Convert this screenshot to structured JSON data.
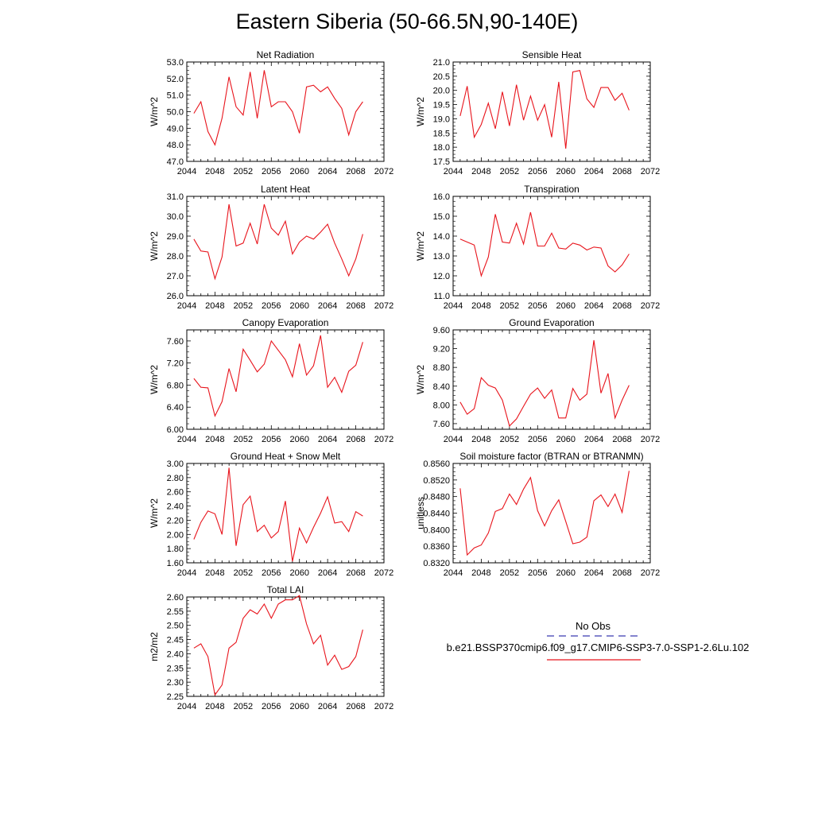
{
  "page": {
    "title": "Eastern Siberia (50-66.5N,90-140E)"
  },
  "legend": {
    "obs_label": "No Obs",
    "model_label": "b.e21.BSSP370cmip6.f09_g17.CMIP6-SSP3-7.0-SSP1-2.6Lu.102",
    "obs_color": "#3b3bb0",
    "model_color": "#e8141c"
  },
  "chart_data": [
    {
      "type": "line",
      "title": "Net Radiation",
      "ylabel": "W/m^2",
      "xlim": [
        2044,
        2072
      ],
      "xticks": [
        "2044",
        "2048",
        "2052",
        "2056",
        "2060",
        "2064",
        "2068",
        "2072"
      ],
      "ylim": [
        47.0,
        53.0
      ],
      "yticks": [
        "47.0",
        "48.0",
        "49.0",
        "50.0",
        "51.0",
        "52.0",
        "53.0"
      ],
      "x": [
        2045,
        2046,
        2047,
        2048,
        2049,
        2050,
        2051,
        2052,
        2053,
        2054,
        2055,
        2056,
        2057,
        2058,
        2059,
        2060,
        2061,
        2062,
        2063,
        2064,
        2065,
        2066,
        2067,
        2068,
        2069
      ],
      "y": [
        49.9,
        50.6,
        48.8,
        48.0,
        49.6,
        52.1,
        50.3,
        49.8,
        52.4,
        49.6,
        52.5,
        50.3,
        50.6,
        50.6,
        50.0,
        48.7,
        51.5,
        51.6,
        51.2,
        51.5,
        50.8,
        50.2,
        48.6,
        50.0,
        50.6
      ]
    },
    {
      "type": "line",
      "title": "Sensible Heat",
      "ylabel": "W/m^2",
      "xlim": [
        2044,
        2072
      ],
      "xticks": [
        "2044",
        "2048",
        "2052",
        "2056",
        "2060",
        "2064",
        "2068",
        "2072"
      ],
      "ylim": [
        17.5,
        21.0
      ],
      "yticks": [
        "17.5",
        "18.0",
        "18.5",
        "19.0",
        "19.5",
        "20.0",
        "20.5",
        "21.0"
      ],
      "x": [
        2045,
        2046,
        2047,
        2048,
        2049,
        2050,
        2051,
        2052,
        2053,
        2054,
        2055,
        2056,
        2057,
        2058,
        2059,
        2060,
        2061,
        2062,
        2063,
        2064,
        2065,
        2066,
        2067,
        2068,
        2069
      ],
      "y": [
        19.1,
        20.15,
        18.35,
        18.8,
        19.55,
        18.65,
        19.95,
        18.75,
        20.2,
        18.95,
        19.8,
        18.95,
        19.5,
        18.35,
        20.3,
        17.95,
        20.65,
        20.7,
        19.7,
        19.4,
        20.1,
        20.1,
        19.65,
        19.9,
        19.3
      ]
    },
    {
      "type": "line",
      "title": "Latent Heat",
      "ylabel": "W/m^2",
      "xlim": [
        2044,
        2072
      ],
      "xticks": [
        "2044",
        "2048",
        "2052",
        "2056",
        "2060",
        "2064",
        "2068",
        "2072"
      ],
      "ylim": [
        26.0,
        31.0
      ],
      "yticks": [
        "26.0",
        "27.0",
        "28.0",
        "29.0",
        "30.0",
        "31.0"
      ],
      "x": [
        2045,
        2046,
        2047,
        2048,
        2049,
        2050,
        2051,
        2052,
        2053,
        2054,
        2055,
        2056,
        2057,
        2058,
        2059,
        2060,
        2061,
        2062,
        2063,
        2064,
        2065,
        2066,
        2067,
        2068,
        2069
      ],
      "y": [
        28.85,
        28.25,
        28.2,
        26.85,
        27.95,
        30.6,
        28.5,
        28.65,
        29.65,
        28.6,
        30.6,
        29.4,
        29.05,
        29.75,
        28.1,
        28.7,
        29.0,
        28.85,
        29.2,
        29.6,
        28.65,
        27.85,
        27.0,
        27.85,
        29.1
      ]
    },
    {
      "type": "line",
      "title": "Transpiration",
      "ylabel": "W/m^2",
      "xlim": [
        2044,
        2072
      ],
      "xticks": [
        "2044",
        "2048",
        "2052",
        "2056",
        "2060",
        "2064",
        "2068",
        "2072"
      ],
      "ylim": [
        11.0,
        16.0
      ],
      "yticks": [
        "11.0",
        "12.0",
        "13.0",
        "14.0",
        "15.0",
        "16.0"
      ],
      "x": [
        2045,
        2046,
        2047,
        2048,
        2049,
        2050,
        2051,
        2052,
        2053,
        2054,
        2055,
        2056,
        2057,
        2058,
        2059,
        2060,
        2061,
        2062,
        2063,
        2064,
        2065,
        2066,
        2067,
        2068,
        2069
      ],
      "y": [
        13.85,
        13.7,
        13.55,
        12.0,
        12.95,
        15.1,
        13.7,
        13.65,
        14.65,
        13.6,
        15.2,
        13.5,
        13.5,
        14.15,
        13.4,
        13.35,
        13.65,
        13.55,
        13.3,
        13.45,
        13.4,
        12.5,
        12.2,
        12.55,
        13.1
      ]
    },
    {
      "type": "line",
      "title": "Canopy Evaporation",
      "ylabel": "W/m^2",
      "xlim": [
        2044,
        2072
      ],
      "xticks": [
        "2044",
        "2048",
        "2052",
        "2056",
        "2060",
        "2064",
        "2068",
        "2072"
      ],
      "ylim": [
        6.0,
        7.8
      ],
      "yticks": [
        "6.00",
        "6.40",
        "6.80",
        "7.20",
        "7.60"
      ],
      "ytick_values": [
        6.0,
        6.4,
        6.8,
        7.2,
        7.6
      ],
      "x": [
        2045,
        2046,
        2047,
        2048,
        2049,
        2050,
        2051,
        2052,
        2053,
        2054,
        2055,
        2056,
        2057,
        2058,
        2059,
        2060,
        2061,
        2062,
        2063,
        2064,
        2065,
        2066,
        2067,
        2068,
        2069
      ],
      "y": [
        6.92,
        6.76,
        6.75,
        6.24,
        6.5,
        7.1,
        6.68,
        7.45,
        7.25,
        7.04,
        7.18,
        7.6,
        7.43,
        7.26,
        6.95,
        7.55,
        6.98,
        7.15,
        7.7,
        6.76,
        6.94,
        6.67,
        7.05,
        7.16,
        7.58
      ]
    },
    {
      "type": "line",
      "title": "Ground Evaporation",
      "ylabel": "W/m^2",
      "xlim": [
        2044,
        2072
      ],
      "xticks": [
        "2044",
        "2048",
        "2052",
        "2056",
        "2060",
        "2064",
        "2068",
        "2072"
      ],
      "ylim": [
        7.48,
        9.6
      ],
      "yticks": [
        "7.60",
        "8.00",
        "8.40",
        "8.80",
        "9.20",
        "9.60"
      ],
      "ytick_values": [
        7.6,
        8.0,
        8.4,
        8.8,
        9.2,
        9.6
      ],
      "x": [
        2045,
        2046,
        2047,
        2048,
        2049,
        2050,
        2051,
        2052,
        2053,
        2054,
        2055,
        2056,
        2057,
        2058,
        2059,
        2060,
        2061,
        2062,
        2063,
        2064,
        2065,
        2066,
        2067,
        2068,
        2069
      ],
      "y": [
        8.06,
        7.8,
        7.92,
        8.58,
        8.42,
        8.36,
        8.1,
        7.55,
        7.7,
        7.97,
        8.23,
        8.36,
        8.14,
        8.32,
        7.72,
        7.72,
        8.35,
        8.1,
        8.23,
        9.38,
        8.25,
        8.67,
        7.72,
        8.1,
        8.42
      ]
    },
    {
      "type": "line",
      "title": "Ground Heat + Snow Melt",
      "ylabel": "W/m^2",
      "xlim": [
        2044,
        2072
      ],
      "xticks": [
        "2044",
        "2048",
        "2052",
        "2056",
        "2060",
        "2064",
        "2068",
        "2072"
      ],
      "ylim": [
        1.6,
        3.0
      ],
      "yticks": [
        "1.60",
        "1.80",
        "2.00",
        "2.20",
        "2.40",
        "2.60",
        "2.80",
        "3.00"
      ],
      "ytick_values": [
        1.6,
        1.8,
        2.0,
        2.2,
        2.4,
        2.6,
        2.8,
        3.0
      ],
      "x": [
        2045,
        2046,
        2047,
        2048,
        2049,
        2050,
        2051,
        2052,
        2053,
        2054,
        2055,
        2056,
        2057,
        2058,
        2059,
        2060,
        2061,
        2062,
        2063,
        2064,
        2065,
        2066,
        2067,
        2068,
        2069
      ],
      "y": [
        1.93,
        2.17,
        2.33,
        2.29,
        2.0,
        2.94,
        1.84,
        2.42,
        2.54,
        2.04,
        2.13,
        1.95,
        2.04,
        2.47,
        1.62,
        2.09,
        1.88,
        2.1,
        2.3,
        2.53,
        2.16,
        2.18,
        2.04,
        2.32,
        2.26
      ]
    },
    {
      "type": "line",
      "title": "Soil moisture factor (BTRAN or BTRANMN)",
      "ylabel": "unitless",
      "xlim": [
        2044,
        2072
      ],
      "xticks": [
        "2044",
        "2048",
        "2052",
        "2056",
        "2060",
        "2064",
        "2068",
        "2072"
      ],
      "ylim": [
        0.832,
        0.856
      ],
      "yticks": [
        "0.8320",
        "0.8360",
        "0.8400",
        "0.8440",
        "0.8480",
        "0.8520",
        "0.8560"
      ],
      "ytick_values": [
        0.832,
        0.836,
        0.84,
        0.844,
        0.848,
        0.852,
        0.856
      ],
      "x": [
        2045,
        2046,
        2047,
        2048,
        2049,
        2050,
        2051,
        2052,
        2053,
        2054,
        2055,
        2056,
        2057,
        2058,
        2059,
        2060,
        2061,
        2062,
        2063,
        2064,
        2065,
        2066,
        2067,
        2068,
        2069
      ],
      "y": [
        0.85,
        0.8339,
        0.8356,
        0.8363,
        0.8392,
        0.8444,
        0.8451,
        0.8486,
        0.8461,
        0.8498,
        0.8526,
        0.8446,
        0.8409,
        0.8446,
        0.8472,
        0.842,
        0.8366,
        0.837,
        0.8382,
        0.847,
        0.8484,
        0.8456,
        0.8486,
        0.8442,
        0.8542
      ]
    },
    {
      "type": "line",
      "title": "Total LAI",
      "ylabel": "m2/m2",
      "xlim": [
        2044,
        2072
      ],
      "xticks": [
        "2044",
        "2048",
        "2052",
        "2056",
        "2060",
        "2064",
        "2068",
        "2072"
      ],
      "ylim": [
        2.25,
        2.6
      ],
      "yticks": [
        "2.25",
        "2.30",
        "2.35",
        "2.40",
        "2.45",
        "2.50",
        "2.55",
        "2.60"
      ],
      "x": [
        2045,
        2046,
        2047,
        2048,
        2049,
        2050,
        2051,
        2052,
        2053,
        2054,
        2055,
        2056,
        2057,
        2058,
        2059,
        2060,
        2061,
        2062,
        2063,
        2064,
        2065,
        2066,
        2067,
        2068,
        2069
      ],
      "y": [
        2.42,
        2.435,
        2.39,
        2.255,
        2.29,
        2.42,
        2.44,
        2.525,
        2.555,
        2.54,
        2.575,
        2.525,
        2.575,
        2.59,
        2.59,
        2.605,
        2.505,
        2.435,
        2.465,
        2.36,
        2.395,
        2.345,
        2.355,
        2.39,
        2.485
      ]
    }
  ]
}
